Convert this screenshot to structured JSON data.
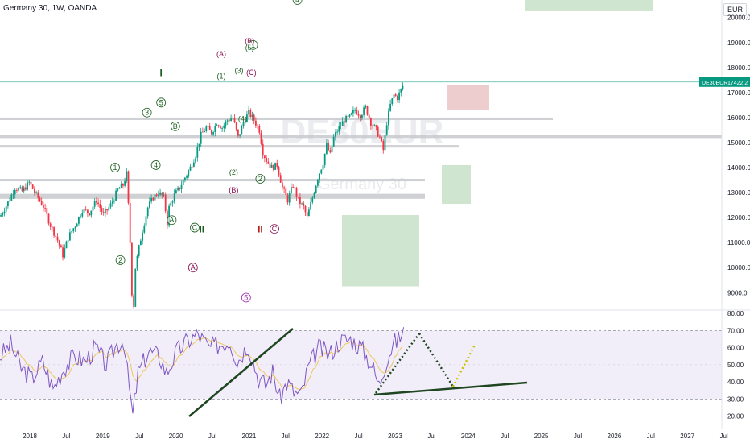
{
  "chart_data": {
    "type": "candlestick",
    "symbol_title": "Germany 30, 1W, OANDA",
    "currency": "EUR",
    "watermark": "DE30EUR",
    "watermark_sub": "Germany 30",
    "last_price": {
      "symbol": "DE30EUR",
      "value": "17422.2"
    },
    "price_axis": {
      "ticks": [
        9000,
        10000,
        11000,
        12000,
        13000,
        14000,
        15000,
        16000,
        17000,
        18000,
        19000,
        20000
      ],
      "range": [
        8300,
        20700
      ]
    },
    "rsi_axis": {
      "ticks": [
        20,
        30,
        40,
        50,
        60,
        70,
        80
      ],
      "range": [
        16,
        82
      ],
      "band": [
        30,
        70
      ]
    },
    "time_axis": {
      "labels": [
        "2018",
        "Jul",
        "2019",
        "Jul",
        "2020",
        "Jul",
        "2021",
        "Jul",
        "2022",
        "Jul",
        "2023",
        "Jul",
        "2024",
        "Jul",
        "2025",
        "Jul",
        "2026",
        "Jul",
        "2027",
        "Jul"
      ]
    },
    "price_path": [
      [
        0,
        12100
      ],
      [
        4,
        12600
      ],
      [
        8,
        13200
      ],
      [
        12,
        13050
      ],
      [
        16,
        13400
      ],
      [
        20,
        12900
      ],
      [
        24,
        12450
      ],
      [
        28,
        11700
      ],
      [
        32,
        11100
      ],
      [
        35,
        10500
      ],
      [
        38,
        11200
      ],
      [
        42,
        11700
      ],
      [
        46,
        12300
      ],
      [
        50,
        12200
      ],
      [
        54,
        12700
      ],
      [
        58,
        12100
      ],
      [
        62,
        12500
      ],
      [
        66,
        13100
      ],
      [
        69,
        13300
      ],
      [
        71,
        13750
      ],
      [
        72,
        12500
      ],
      [
        73,
        11000
      ],
      [
        74,
        9000
      ],
      [
        75,
        8500
      ],
      [
        76,
        10000
      ],
      [
        78,
        10800
      ],
      [
        80,
        11500
      ],
      [
        83,
        12400
      ],
      [
        86,
        12800
      ],
      [
        89,
        13000
      ],
      [
        92,
        12800
      ],
      [
        94,
        11800
      ],
      [
        95,
        12400
      ],
      [
        98,
        12900
      ],
      [
        101,
        13200
      ],
      [
        104,
        13600
      ],
      [
        107,
        14000
      ],
      [
        110,
        14500
      ],
      [
        113,
        15300
      ],
      [
        116,
        15600
      ],
      [
        119,
        15400
      ],
      [
        122,
        15800
      ],
      [
        125,
        15600
      ],
      [
        128,
        15900
      ],
      [
        131,
        16000
      ],
      [
        134,
        15200
      ],
      [
        137,
        15800
      ],
      [
        140,
        16200
      ],
      [
        143,
        15900
      ],
      [
        146,
        15500
      ],
      [
        148,
        14600
      ],
      [
        150,
        14300
      ],
      [
        153,
        14000
      ],
      [
        156,
        14100
      ],
      [
        159,
        13200
      ],
      [
        162,
        12700
      ],
      [
        165,
        13300
      ],
      [
        168,
        12700
      ],
      [
        171,
        12400
      ],
      [
        173,
        12000
      ],
      [
        176,
        12800
      ],
      [
        179,
        13600
      ],
      [
        182,
        14200
      ],
      [
        184,
        14900
      ],
      [
        186,
        14500
      ],
      [
        188,
        15200
      ],
      [
        191,
        15600
      ],
      [
        194,
        15900
      ],
      [
        197,
        16000
      ],
      [
        200,
        16300
      ],
      [
        203,
        16100
      ],
      [
        206,
        16400
      ],
      [
        209,
        15800
      ],
      [
        212,
        15500
      ],
      [
        214,
        15200
      ],
      [
        216,
        14700
      ],
      [
        218,
        15800
      ],
      [
        220,
        16500
      ],
      [
        222,
        16900
      ],
      [
        224,
        16800
      ],
      [
        226,
        17100
      ],
      [
        228,
        17422
      ]
    ],
    "rsi_path": [
      [
        0,
        55
      ],
      [
        6,
        62
      ],
      [
        12,
        48
      ],
      [
        18,
        42
      ],
      [
        24,
        52
      ],
      [
        30,
        36
      ],
      [
        36,
        48
      ],
      [
        42,
        55
      ],
      [
        48,
        52
      ],
      [
        54,
        60
      ],
      [
        60,
        50
      ],
      [
        66,
        62
      ],
      [
        70,
        64
      ],
      [
        72,
        45
      ],
      [
        75,
        20
      ],
      [
        78,
        45
      ],
      [
        84,
        58
      ],
      [
        90,
        55
      ],
      [
        94,
        45
      ],
      [
        100,
        58
      ],
      [
        106,
        64
      ],
      [
        112,
        68
      ],
      [
        118,
        60
      ],
      [
        124,
        62
      ],
      [
        130,
        64
      ],
      [
        134,
        52
      ],
      [
        140,
        62
      ],
      [
        146,
        42
      ],
      [
        150,
        38
      ],
      [
        154,
        46
      ],
      [
        158,
        30
      ],
      [
        162,
        40
      ],
      [
        166,
        34
      ],
      [
        170,
        32
      ],
      [
        174,
        48
      ],
      [
        180,
        60
      ],
      [
        186,
        56
      ],
      [
        192,
        64
      ],
      [
        198,
        65
      ],
      [
        204,
        60
      ],
      [
        210,
        50
      ],
      [
        214,
        38
      ],
      [
        218,
        52
      ],
      [
        222,
        62
      ],
      [
        226,
        66
      ],
      [
        228,
        72
      ]
    ],
    "labels": [
      {
        "text": "1",
        "style": "circle-green",
        "week": 65,
        "price": 14000
      },
      {
        "text": "2",
        "style": "circle-green",
        "week": 68,
        "price": 10300
      },
      {
        "text": "3",
        "style": "circle-green",
        "week": 83,
        "price": 16200
      },
      {
        "text": "4",
        "style": "circle-green",
        "week": 88,
        "price": 14100
      },
      {
        "text": "5",
        "style": "circle-green",
        "week": 91,
        "price": 16600
      },
      {
        "text": "I",
        "style": "roman-green",
        "week": 91,
        "price": 17750
      },
      {
        "text": "A",
        "style": "circle-green",
        "week": 97,
        "price": 11900
      },
      {
        "text": "B",
        "style": "circle-green",
        "week": 99,
        "price": 15650
      },
      {
        "text": "C",
        "style": "circle-green",
        "week": 110,
        "price": 11600
      },
      {
        "text": "II",
        "style": "roman-green",
        "week": 114,
        "price": 11500
      },
      {
        "text": "A",
        "style": "circle-red",
        "week": 109,
        "price": 10000
      },
      {
        "text": "(A)",
        "style": "paren-red",
        "week": 125,
        "price": 18550
      },
      {
        "text": "(1)",
        "style": "paren-green",
        "week": 125,
        "price": 17650
      },
      {
        "text": "(3)",
        "style": "paren-green",
        "week": 135,
        "price": 17880
      },
      {
        "text": "(4)",
        "style": "paren-green",
        "week": 137,
        "price": 15950
      },
      {
        "text": "(5)",
        "style": "paren-green",
        "week": 141,
        "price": 18800
      },
      {
        "text": "1",
        "style": "circle-green",
        "week": 143,
        "price": 18900
      },
      {
        "text": "(B)",
        "style": "paren-red",
        "week": 141,
        "price": 19050
      },
      {
        "text": "(C)",
        "style": "paren-red",
        "week": 142,
        "price": 17800
      },
      {
        "text": "(2)",
        "style": "paren-green",
        "week": 132,
        "price": 13800
      },
      {
        "text": "(B)",
        "style": "paren-red",
        "week": 132,
        "price": 13100
      },
      {
        "text": "2",
        "style": "circle-green",
        "week": 147,
        "price": 13550
      },
      {
        "text": "II",
        "style": "roman-red",
        "week": 147,
        "price": 11500
      },
      {
        "text": "C",
        "style": "circle-red",
        "week": 155,
        "price": 11550
      },
      {
        "text": "4",
        "style": "circle-green",
        "week": 168,
        "price": 20700
      },
      {
        "text": "5",
        "style": "circle-violet",
        "week": 139,
        "price": 8800
      }
    ]
  }
}
